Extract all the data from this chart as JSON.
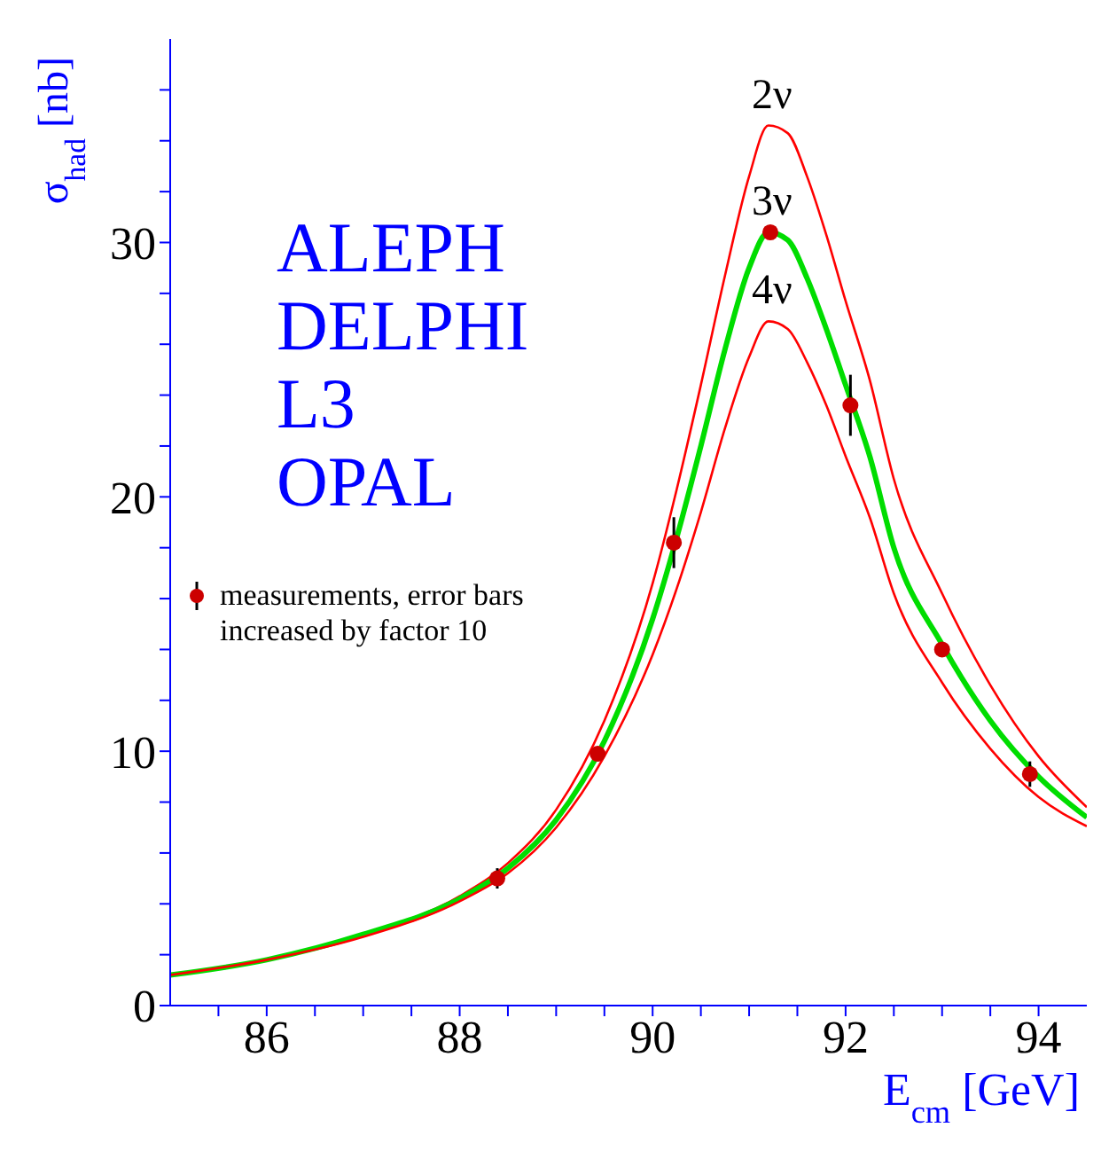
{
  "chart_data": {
    "type": "line",
    "xlabel": "E$_{cm}$ [GeV]",
    "ylabel": "σ$_{had}$ [nb]",
    "annotations": [
      "ALEPH",
      "DELPHI",
      "L3",
      "OPAL"
    ],
    "xlim": [
      85,
      94.5
    ],
    "xticks": [
      {
        "value": 85.5,
        "label": null
      },
      86,
      {
        "value": 86.5,
        "label": null
      },
      {
        "value": 87,
        "label": null
      },
      {
        "value": 87.5,
        "label": null
      },
      88,
      {
        "value": 88.5,
        "label": null
      },
      {
        "value": 89,
        "label": null
      },
      {
        "value": 89.5,
        "label": null
      },
      90,
      {
        "value": 90.5,
        "label": null
      },
      {
        "value": 91,
        "label": null
      },
      {
        "value": 91.5,
        "label": null
      },
      92,
      {
        "value": 92.5,
        "label": null
      },
      {
        "value": 93,
        "label": null
      },
      {
        "value": 93.5,
        "label": null
      },
      94
    ],
    "ylim": [
      0,
      38
    ],
    "yticks": [
      0,
      {
        "value": 2,
        "label": null
      },
      {
        "value": 4,
        "label": null
      },
      {
        "value": 6,
        "label": null
      },
      {
        "value": 8,
        "label": null
      },
      10,
      {
        "value": 12,
        "label": null
      },
      {
        "value": 14,
        "label": null
      },
      {
        "value": 16,
        "label": null
      },
      {
        "value": 18,
        "label": null
      },
      20,
      {
        "value": 22,
        "label": null
      },
      {
        "value": 24,
        "label": null
      },
      {
        "value": 26,
        "label": null
      },
      {
        "value": 28,
        "label": null
      },
      30,
      {
        "value": 32,
        "label": null
      },
      {
        "value": 34,
        "label": null
      },
      {
        "value": 36,
        "label": null
      }
    ],
    "legend": "left",
    "marker": "none",
    "series": [
      {
        "name": "2ν",
        "color": "#ff0000",
        "x": [
          85,
          86,
          87,
          88,
          88.5,
          89,
          89.5,
          90,
          90.25,
          90.5,
          90.75,
          91,
          91.2,
          91.4,
          91.6,
          91.8,
          92,
          92.25,
          92.5,
          93,
          93.5,
          94,
          94.5
        ],
        "values": [
          1.2,
          1.8,
          2.8,
          4.3,
          5.6,
          7.7,
          11.2,
          16.6,
          20.3,
          24.4,
          28.7,
          32.6,
          34.6,
          34.3,
          32.6,
          30.3,
          27.7,
          24.6,
          20.7,
          16.2,
          12.6,
          9.8,
          7.8
        ]
      },
      {
        "name": "3ν",
        "color": "#00dd00",
        "x": [
          85,
          86,
          87,
          88,
          88.5,
          89,
          89.5,
          90,
          90.25,
          90.5,
          90.75,
          91,
          91.2,
          91.4,
          91.6,
          91.8,
          92,
          92.25,
          92.5,
          93,
          93.5,
          94,
          94.5
        ],
        "values": [
          1.2,
          1.8,
          2.8,
          4.2,
          5.4,
          7.3,
          10.4,
          15.2,
          18.4,
          22.0,
          25.8,
          29.0,
          30.4,
          30.1,
          28.6,
          26.6,
          24.4,
          21.6,
          18.0,
          14.2,
          11.2,
          9.0,
          7.4
        ]
      },
      {
        "name": "4ν",
        "color": "#ff0000",
        "x": [
          85,
          86,
          87,
          88,
          88.5,
          89,
          89.5,
          90,
          90.25,
          90.5,
          90.75,
          91,
          91.2,
          91.4,
          91.6,
          91.8,
          92,
          92.25,
          92.5,
          93,
          93.5,
          94,
          94.5
        ],
        "values": [
          1.2,
          1.8,
          2.7,
          4.1,
          5.2,
          7.0,
          9.8,
          13.8,
          16.4,
          19.4,
          22.7,
          25.5,
          26.9,
          26.6,
          25.3,
          23.6,
          21.6,
          19.2,
          16.2,
          12.7,
          10.1,
          8.2,
          7.05
        ]
      },
      {
        "name": "measurements, error bars increased by factor 10",
        "type": "scatter",
        "marker": "circle",
        "color": "#cc0000",
        "x": [
          88.39,
          89.43,
          90.22,
          91.22,
          92.05,
          93.0,
          93.91
        ],
        "values": [
          5.0,
          9.9,
          18.2,
          30.4,
          23.6,
          14.0,
          9.1
        ],
        "errors": [
          0.4,
          null,
          1.0,
          null,
          1.2,
          null,
          0.5
        ]
      }
    ]
  }
}
